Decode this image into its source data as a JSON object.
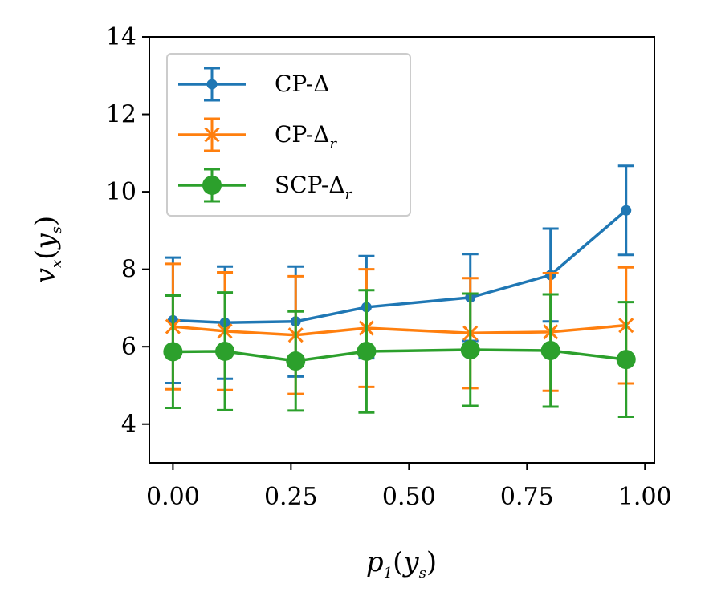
{
  "chart_data": {
    "type": "line",
    "error_bars": true,
    "xlabel": {
      "base": "p",
      "sub1": "1",
      "arg": "y",
      "sub2": "s"
    },
    "ylabel": {
      "base": "v",
      "sub1": "x",
      "arg": "y",
      "sub2": "s"
    },
    "xlim": [
      -0.05,
      1.02
    ],
    "ylim": [
      3,
      14
    ],
    "xticks": [
      0.0,
      0.25,
      0.5,
      0.75,
      1.0
    ],
    "xtick_labels": [
      "0.00",
      "0.25",
      "0.50",
      "0.75",
      "1.00"
    ],
    "yticks": [
      4,
      6,
      8,
      10,
      12,
      14
    ],
    "ytick_labels": [
      "4",
      "6",
      "8",
      "10",
      "12",
      "14"
    ],
    "legend_position": "upper-left",
    "series": [
      {
        "name": "CP-Δ",
        "label_main": "CP-Δ",
        "label_sub": "",
        "color": "#1f77b4",
        "marker": "dot",
        "x": [
          0.0,
          0.11,
          0.26,
          0.41,
          0.63,
          0.8,
          0.96
        ],
        "y": [
          6.68,
          6.62,
          6.65,
          7.02,
          7.27,
          7.85,
          9.52
        ],
        "err": [
          1.62,
          1.45,
          1.42,
          1.32,
          1.12,
          1.2,
          1.15
        ]
      },
      {
        "name": "CP-Δr",
        "label_main": "CP-Δ",
        "label_sub": "r",
        "color": "#ff7f0e",
        "marker": "x",
        "x": [
          0.0,
          0.11,
          0.26,
          0.41,
          0.63,
          0.8,
          0.96
        ],
        "y": [
          6.52,
          6.4,
          6.3,
          6.48,
          6.35,
          6.38,
          6.55
        ],
        "err": [
          1.62,
          1.52,
          1.52,
          1.52,
          1.42,
          1.52,
          1.5
        ]
      },
      {
        "name": "SCP-Δr",
        "label_main": "SCP-Δ",
        "label_sub": "r",
        "color": "#2ca02c",
        "marker": "circle",
        "x": [
          0.0,
          0.11,
          0.26,
          0.41,
          0.63,
          0.8,
          0.96
        ],
        "y": [
          5.87,
          5.88,
          5.63,
          5.88,
          5.92,
          5.9,
          5.67
        ],
        "err": [
          1.45,
          1.52,
          1.28,
          1.58,
          1.45,
          1.45,
          1.48
        ]
      }
    ]
  }
}
